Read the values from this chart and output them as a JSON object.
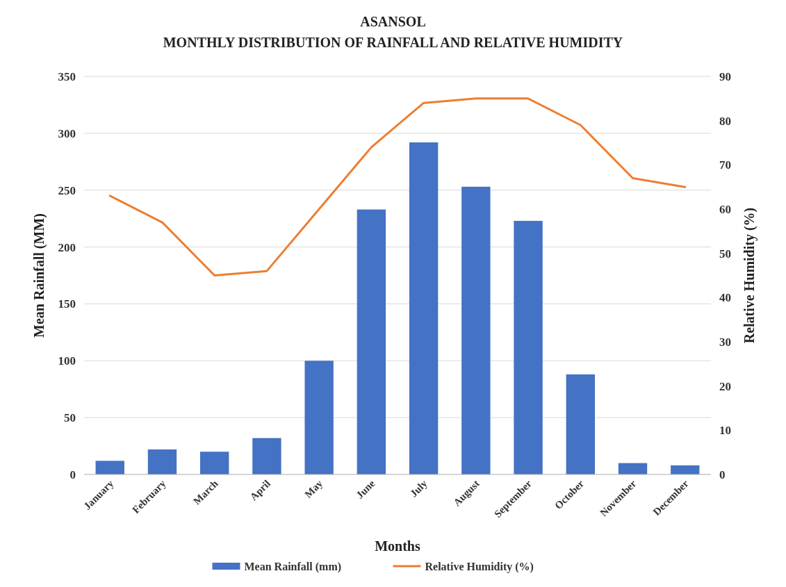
{
  "chart_data": {
    "type": "bar",
    "title": "ASANSOL",
    "subtitle": "MONTHLY DISTRIBUTION OF RAINFALL AND RELATIVE HUMIDITY",
    "xlabel": "Months",
    "ylabel": "Mean Rainfall (MM)",
    "y2label": "Relative Humidity (%)",
    "categories": [
      "January",
      "February",
      "March",
      "April",
      "May",
      "June",
      "July",
      "August",
      "September",
      "October",
      "November",
      "December"
    ],
    "series": [
      {
        "name": "Mean Rainfall (mm)",
        "color": "#4472c4",
        "values": [
          12,
          22,
          20,
          32,
          100,
          233,
          292,
          253,
          223,
          88,
          10,
          8
        ]
      },
      {
        "name": "Relative Humidity (%)",
        "type": "line",
        "axis": "y2",
        "color": "#ed7d31",
        "values": [
          63,
          57,
          45,
          46,
          60,
          74,
          84,
          85,
          85,
          79,
          67,
          65
        ]
      }
    ],
    "ylim": [
      0,
      350
    ],
    "yticks": [
      0,
      50,
      100,
      150,
      200,
      250,
      300,
      350
    ],
    "y2lim": [
      0,
      90
    ],
    "y2ticks": [
      0,
      10,
      20,
      30,
      40,
      50,
      60,
      70,
      80,
      90
    ],
    "grid": "y",
    "legend": "bottom",
    "marker": "none",
    "line_style": "solid"
  }
}
